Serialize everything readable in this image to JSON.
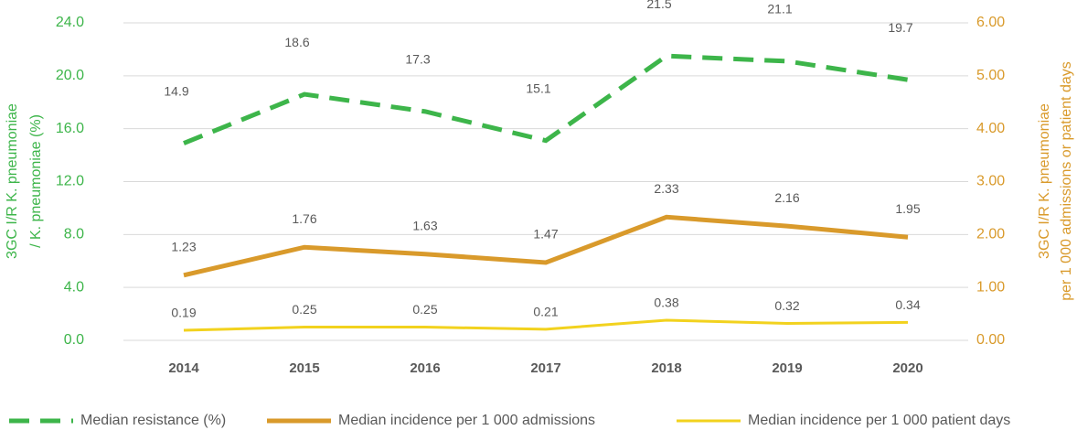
{
  "chart_data": {
    "type": "line",
    "categories": [
      "2014",
      "2015",
      "2016",
      "2017",
      "2018",
      "2019",
      "2020"
    ],
    "series": [
      {
        "name": "Median resistance (%)",
        "color": "#3db54a",
        "dashed": true,
        "values": [
          14.9,
          18.6,
          17.3,
          15.1,
          21.5,
          21.1,
          19.7
        ]
      },
      {
        "name": "Median incidence per 1 000 admissions",
        "color": "#d99a2b",
        "axis": "y2",
        "values": [
          1.23,
          1.76,
          1.63,
          1.47,
          2.33,
          2.16,
          1.95
        ]
      },
      {
        "name": "Median incidence per 1 000 patient days",
        "color": "#f2d21e",
        "axis": "y2",
        "values": [
          0.19,
          0.25,
          0.25,
          0.21,
          0.38,
          0.32,
          0.34
        ]
      }
    ],
    "y_label": [
      "3GC I/R K. pneumoniae",
      "/ K. pneumoniae (%)"
    ],
    "y2_label": [
      "3GC I/R K. pneumoniae",
      "per 1 000 admissions or patient days"
    ],
    "ylim": [
      0,
      24
    ],
    "yticks": [
      {
        "value": 0,
        "label": "0.0"
      },
      {
        "value": 4,
        "label": "4.0"
      },
      {
        "value": 8,
        "label": "8.0"
      },
      {
        "value": 12,
        "label": "12.0"
      },
      {
        "value": 16,
        "label": "16.0"
      },
      {
        "value": 20,
        "label": "20.0"
      },
      {
        "value": 24,
        "label": "24.0"
      }
    ],
    "y2lim": [
      0,
      6
    ],
    "y2ticks": [
      {
        "value": 0,
        "label": "0.00"
      },
      {
        "value": 1,
        "label": "1.00"
      },
      {
        "value": 2,
        "label": "2.00"
      },
      {
        "value": 3,
        "label": "3.00"
      },
      {
        "value": 4,
        "label": "4.00"
      },
      {
        "value": 5,
        "label": "5.00"
      },
      {
        "value": 6,
        "label": "6.00"
      }
    ],
    "grid": true
  }
}
